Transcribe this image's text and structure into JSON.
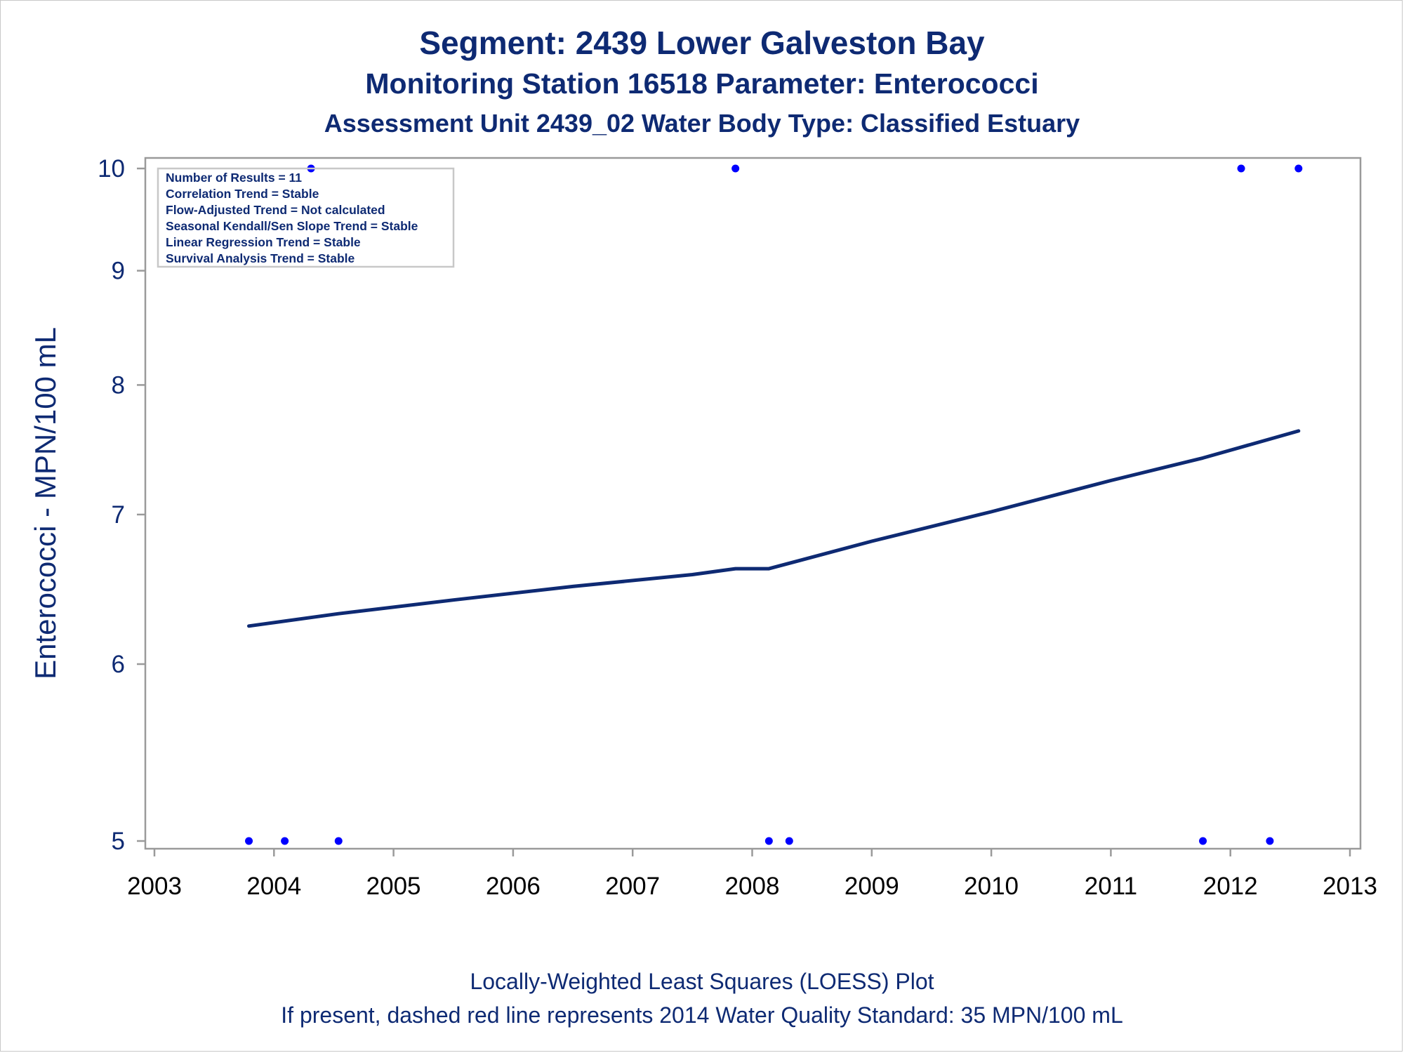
{
  "titles": {
    "line1": "Segment: 2439  Lower Galveston Bay",
    "line2": "Monitoring Station 16518 Parameter: Enterococci",
    "line3": "Assessment Unit 2439_02   Water Body Type: Classified Estuary"
  },
  "footnotes": {
    "line1": "Locally-Weighted Least Squares (LOESS) Plot",
    "line2": "If present, dashed red line represents 2014 Water Quality Standard: 35 MPN/100 mL"
  },
  "stats_box": [
    "Number of Results = 11",
    "Correlation Trend = Stable",
    "Flow-Adjusted Trend = Not calculated",
    "Seasonal Kendall/Sen Slope Trend = Stable",
    "Linear Regression Trend = Stable",
    "Survival Analysis Trend = Stable"
  ],
  "colors": {
    "text": "#0e2a73",
    "line": "#0e2a73",
    "points": "#0000ff",
    "axis": "#9a9a9a"
  },
  "chart_data": {
    "type": "scatter",
    "ylabel": "Enterococci - MPN/100 mL",
    "xlabel": "",
    "x_ticks": [
      "2003",
      "2004",
      "2005",
      "2006",
      "2007",
      "2008",
      "2009",
      "2010",
      "2011",
      "2012",
      "2013"
    ],
    "y_ticks": [
      5,
      6,
      7,
      8,
      9,
      10
    ],
    "xlim": [
      2003,
      2013
    ],
    "ylim": [
      4.93,
      10.12
    ],
    "y_scale": "log",
    "legend_position": "top-left",
    "series": [
      {
        "type": "scatter",
        "points": [
          {
            "x": 2003.79,
            "y": 5
          },
          {
            "x": 2004.09,
            "y": 5
          },
          {
            "x": 2004.31,
            "y": 10
          },
          {
            "x": 2004.54,
            "y": 5
          },
          {
            "x": 2007.86,
            "y": 10
          },
          {
            "x": 2008.14,
            "y": 5
          },
          {
            "x": 2008.31,
            "y": 5
          },
          {
            "x": 2011.77,
            "y": 5
          },
          {
            "x": 2012.09,
            "y": 10
          },
          {
            "x": 2012.33,
            "y": 5
          },
          {
            "x": 2012.57,
            "y": 10
          }
        ]
      },
      {
        "type": "line",
        "points": [
          {
            "x": 2003.79,
            "y": 6.24
          },
          {
            "x": 2004.54,
            "y": 6.32
          },
          {
            "x": 2005.5,
            "y": 6.41
          },
          {
            "x": 2006.5,
            "y": 6.5
          },
          {
            "x": 2007.5,
            "y": 6.58
          },
          {
            "x": 2007.86,
            "y": 6.62
          },
          {
            "x": 2008.14,
            "y": 6.62
          },
          {
            "x": 2009.0,
            "y": 6.81
          },
          {
            "x": 2010.0,
            "y": 7.02
          },
          {
            "x": 2011.0,
            "y": 7.25
          },
          {
            "x": 2011.77,
            "y": 7.42
          },
          {
            "x": 2012.57,
            "y": 7.63
          }
        ]
      }
    ]
  }
}
